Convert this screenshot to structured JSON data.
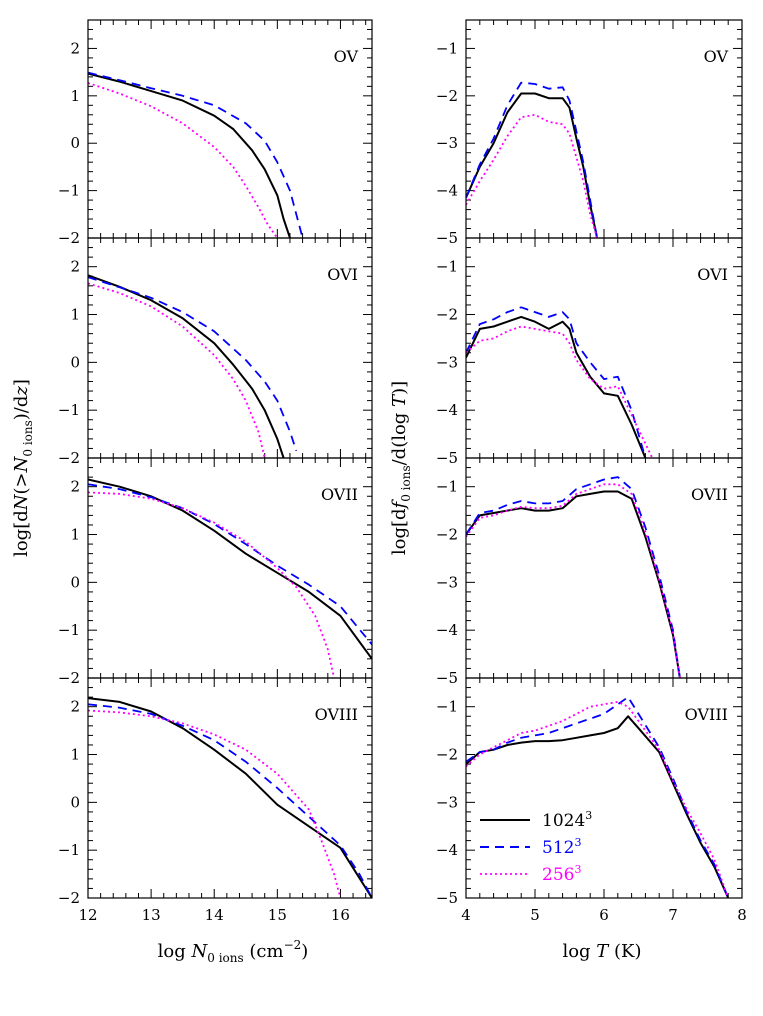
{
  "chart_data": [
    {
      "type": "line",
      "panel": "left",
      "row": 0,
      "title": "OV",
      "xlim": [
        12,
        16.5
      ],
      "ylim": [
        -2,
        2.6
      ],
      "series": [
        {
          "name": "1024³",
          "x": [
            12,
            12.5,
            13,
            13.5,
            14,
            14.3,
            14.6,
            14.8,
            15,
            15.1,
            15.2
          ],
          "y": [
            1.47,
            1.3,
            1.1,
            0.9,
            0.58,
            0.3,
            -0.15,
            -0.55,
            -1.1,
            -1.6,
            -2.0
          ]
        },
        {
          "name": "512³",
          "x": [
            12,
            12.5,
            13,
            13.5,
            14,
            14.5,
            14.8,
            15,
            15.2,
            15.3,
            15.4
          ],
          "y": [
            1.49,
            1.33,
            1.16,
            1.0,
            0.8,
            0.42,
            0.05,
            -0.4,
            -1.0,
            -1.5,
            -2.0
          ]
        },
        {
          "name": "256³",
          "x": [
            12,
            12.5,
            13,
            13.5,
            14,
            14.3,
            14.5,
            14.7,
            14.85,
            15
          ],
          "y": [
            1.27,
            1.05,
            0.78,
            0.42,
            -0.08,
            -0.5,
            -0.9,
            -1.35,
            -1.72,
            -2.0
          ]
        }
      ]
    },
    {
      "type": "line",
      "panel": "right",
      "row": 0,
      "title": "OV",
      "xlim": [
        4,
        8
      ],
      "ylim": [
        -5,
        -0.4
      ],
      "series": [
        {
          "name": "1024³",
          "x": [
            4,
            4.2,
            4.4,
            4.6,
            4.8,
            5,
            5.2,
            5.4,
            5.5,
            5.6,
            5.7,
            5.8,
            5.9
          ],
          "y": [
            -4.15,
            -3.5,
            -3,
            -2.35,
            -1.95,
            -1.95,
            -2.05,
            -2.05,
            -2.25,
            -2.9,
            -3.5,
            -4.3,
            -5
          ]
        },
        {
          "name": "512³",
          "x": [
            4,
            4.2,
            4.4,
            4.6,
            4.8,
            5,
            5.2,
            5.4,
            5.5,
            5.6,
            5.7,
            5.8,
            5.9
          ],
          "y": [
            -4.15,
            -3.45,
            -2.9,
            -2.2,
            -1.72,
            -1.75,
            -1.85,
            -1.82,
            -2.1,
            -2.75,
            -3.4,
            -4.2,
            -5
          ]
        },
        {
          "name": "256³",
          "x": [
            4,
            4.2,
            4.4,
            4.6,
            4.8,
            5,
            5.2,
            5.4,
            5.5,
            5.6,
            5.7,
            5.8,
            5.9
          ],
          "y": [
            -4.3,
            -3.8,
            -3.35,
            -2.85,
            -2.45,
            -2.4,
            -2.55,
            -2.6,
            -2.8,
            -3.3,
            -3.8,
            -4.5,
            -5
          ]
        }
      ]
    },
    {
      "type": "line",
      "panel": "left",
      "row": 1,
      "title": "OVI",
      "xlim": [
        12,
        16.5
      ],
      "ylim": [
        -2,
        2.6
      ],
      "series": [
        {
          "name": "1024³",
          "x": [
            12,
            12.5,
            13,
            13.5,
            14,
            14.3,
            14.6,
            14.8,
            15,
            15.1
          ],
          "y": [
            1.82,
            1.58,
            1.3,
            0.92,
            0.4,
            -0.05,
            -0.55,
            -1.0,
            -1.6,
            -2.0
          ]
        },
        {
          "name": "512³",
          "x": [
            12,
            12.5,
            13,
            13.5,
            14,
            14.5,
            14.8,
            15,
            15.2,
            15.3
          ],
          "y": [
            1.78,
            1.57,
            1.35,
            1.05,
            0.65,
            0.05,
            -0.4,
            -0.8,
            -1.45,
            -1.85
          ]
        },
        {
          "name": "256³",
          "x": [
            12,
            12.5,
            13,
            13.5,
            14,
            14.3,
            14.5,
            14.7,
            14.8
          ],
          "y": [
            1.65,
            1.45,
            1.17,
            0.75,
            0.15,
            -0.35,
            -0.8,
            -1.45,
            -2.0
          ]
        }
      ]
    },
    {
      "type": "line",
      "panel": "right",
      "row": 1,
      "title": "OVI",
      "xlim": [
        4,
        8
      ],
      "ylim": [
        -5,
        -0.4
      ],
      "series": [
        {
          "name": "1024³",
          "x": [
            4,
            4.2,
            4.4,
            4.6,
            4.8,
            5,
            5.2,
            5.4,
            5.5,
            5.6,
            5.8,
            6,
            6.2,
            6.4,
            6.6
          ],
          "y": [
            -2.9,
            -2.3,
            -2.25,
            -2.15,
            -2.05,
            -2.15,
            -2.3,
            -2.15,
            -2.3,
            -2.8,
            -3.3,
            -3.65,
            -3.7,
            -4.3,
            -5
          ]
        },
        {
          "name": "512³",
          "x": [
            4,
            4.2,
            4.4,
            4.6,
            4.8,
            5,
            5.2,
            5.4,
            5.5,
            5.6,
            5.8,
            6,
            6.2,
            6.4,
            6.6
          ],
          "y": [
            -2.8,
            -2.2,
            -2.1,
            -1.95,
            -1.85,
            -1.95,
            -2.05,
            -1.95,
            -2.1,
            -2.6,
            -3.0,
            -3.35,
            -3.3,
            -4.0,
            -5
          ]
        },
        {
          "name": "256³",
          "x": [
            4,
            4.2,
            4.4,
            4.6,
            4.8,
            5,
            5.2,
            5.4,
            5.5,
            5.6,
            5.8,
            6,
            6.2,
            6.4,
            6.7
          ],
          "y": [
            -2.8,
            -2.55,
            -2.5,
            -2.35,
            -2.25,
            -2.3,
            -2.35,
            -2.4,
            -2.6,
            -2.95,
            -3.35,
            -3.55,
            -3.5,
            -4.1,
            -5
          ]
        }
      ]
    },
    {
      "type": "line",
      "panel": "left",
      "row": 2,
      "title": "OVII",
      "xlim": [
        12,
        16.5
      ],
      "ylim": [
        -2,
        2.6
      ],
      "series": [
        {
          "name": "1024³",
          "x": [
            12,
            12.5,
            13,
            13.5,
            14,
            14.5,
            15,
            15.5,
            16,
            16.5
          ],
          "y": [
            2.15,
            2.0,
            1.8,
            1.5,
            1.08,
            0.6,
            0.2,
            -0.2,
            -0.7,
            -1.6
          ]
        },
        {
          "name": "512³",
          "x": [
            12,
            12.5,
            13,
            13.5,
            14,
            14.5,
            15,
            15.5,
            16,
            16.5
          ],
          "y": [
            2.05,
            1.95,
            1.78,
            1.55,
            1.22,
            0.8,
            0.35,
            -0.05,
            -0.5,
            -1.3
          ]
        },
        {
          "name": "256³",
          "x": [
            12,
            12.5,
            13,
            13.5,
            14,
            14.5,
            15,
            15.3,
            15.6,
            15.8,
            15.9
          ],
          "y": [
            1.88,
            1.85,
            1.75,
            1.55,
            1.25,
            0.85,
            0.3,
            -0.1,
            -0.7,
            -1.4,
            -2.0
          ]
        }
      ]
    },
    {
      "type": "line",
      "panel": "right",
      "row": 2,
      "title": "OVII",
      "xlim": [
        4,
        8
      ],
      "ylim": [
        -5,
        -0.4
      ],
      "series": [
        {
          "name": "1024³",
          "x": [
            4,
            4.2,
            4.4,
            4.6,
            4.8,
            5,
            5.2,
            5.4,
            5.6,
            5.8,
            6,
            6.2,
            6.4,
            6.6,
            6.8,
            7,
            7.1
          ],
          "y": [
            -2.0,
            -1.6,
            -1.55,
            -1.5,
            -1.45,
            -1.5,
            -1.5,
            -1.45,
            -1.2,
            -1.15,
            -1.1,
            -1.1,
            -1.25,
            -2.05,
            -3.0,
            -4.1,
            -5
          ]
        },
        {
          "name": "512³",
          "x": [
            4,
            4.2,
            4.4,
            4.6,
            4.8,
            5,
            5.2,
            5.4,
            5.6,
            5.8,
            6,
            6.2,
            6.4,
            6.6,
            6.8,
            7,
            7.1
          ],
          "y": [
            -2.0,
            -1.55,
            -1.5,
            -1.38,
            -1.3,
            -1.35,
            -1.35,
            -1.3,
            -1.05,
            -0.95,
            -0.85,
            -0.8,
            -1.05,
            -1.85,
            -2.85,
            -4.0,
            -5
          ]
        },
        {
          "name": "256³",
          "x": [
            4,
            4.2,
            4.4,
            4.6,
            4.8,
            5,
            5.2,
            5.4,
            5.6,
            5.8,
            6,
            6.2,
            6.4,
            6.6,
            6.8,
            7,
            7.1
          ],
          "y": [
            -2.05,
            -1.65,
            -1.6,
            -1.5,
            -1.42,
            -1.45,
            -1.45,
            -1.4,
            -1.15,
            -1.05,
            -0.95,
            -0.95,
            -1.15,
            -1.95,
            -2.95,
            -4.05,
            -5
          ]
        }
      ]
    },
    {
      "type": "line",
      "panel": "left",
      "row": 3,
      "title": "OVIII",
      "xlim": [
        12,
        16.5
      ],
      "ylim": [
        -2,
        2.6
      ],
      "series": [
        {
          "name": "1024³",
          "x": [
            12,
            12.5,
            13,
            13.5,
            14,
            14.5,
            15,
            15.5,
            16,
            16.5
          ],
          "y": [
            2.18,
            2.1,
            1.9,
            1.55,
            1.1,
            0.6,
            -0.05,
            -0.5,
            -0.95,
            -2.0
          ]
        },
        {
          "name": "512³",
          "x": [
            12,
            12.5,
            13,
            13.5,
            14,
            14.5,
            15,
            15.5,
            16,
            16.3,
            16.5
          ],
          "y": [
            2.05,
            1.98,
            1.85,
            1.6,
            1.3,
            0.85,
            0.3,
            -0.3,
            -0.9,
            -1.5,
            -2.0
          ]
        },
        {
          "name": "256³",
          "x": [
            12,
            12.5,
            13,
            13.5,
            14,
            14.5,
            15,
            15.5,
            15.7,
            15.9,
            16
          ],
          "y": [
            1.92,
            1.88,
            1.8,
            1.65,
            1.42,
            1.1,
            0.6,
            -0.15,
            -0.8,
            -1.5,
            -2.0
          ]
        }
      ]
    },
    {
      "type": "line",
      "panel": "right",
      "row": 3,
      "title": "OVIII",
      "xlim": [
        4,
        8
      ],
      "ylim": [
        -5,
        -0.4
      ],
      "series": [
        {
          "name": "1024³",
          "x": [
            4,
            4.2,
            4.4,
            4.6,
            4.8,
            5,
            5.2,
            5.4,
            5.6,
            5.8,
            6,
            6.2,
            6.35,
            6.5,
            6.8,
            7,
            7.2,
            7.4,
            7.6,
            7.8
          ],
          "y": [
            -2.2,
            -1.95,
            -1.9,
            -1.8,
            -1.75,
            -1.72,
            -1.72,
            -1.7,
            -1.65,
            -1.6,
            -1.55,
            -1.45,
            -1.2,
            -1.45,
            -1.95,
            -2.6,
            -3.25,
            -3.85,
            -4.35,
            -5
          ]
        },
        {
          "name": "512³",
          "x": [
            4,
            4.2,
            4.4,
            4.6,
            4.8,
            5,
            5.2,
            5.4,
            5.6,
            5.8,
            6,
            6.2,
            6.35,
            6.5,
            6.8,
            7,
            7.2,
            7.4,
            7.6,
            7.8
          ],
          "y": [
            -2.15,
            -1.95,
            -1.9,
            -1.75,
            -1.65,
            -1.6,
            -1.55,
            -1.45,
            -1.35,
            -1.25,
            -1.15,
            -0.95,
            -0.8,
            -1.15,
            -1.85,
            -2.5,
            -3.2,
            -3.8,
            -4.3,
            -5
          ]
        },
        {
          "name": "256³",
          "x": [
            4,
            4.2,
            4.4,
            4.6,
            4.8,
            5,
            5.2,
            5.4,
            5.6,
            5.8,
            6,
            6.2,
            6.35,
            6.5,
            6.8,
            7,
            7.2,
            7.4,
            7.6,
            7.8
          ],
          "y": [
            -2.25,
            -2.0,
            -1.85,
            -1.7,
            -1.55,
            -1.5,
            -1.4,
            -1.3,
            -1.15,
            -1.0,
            -0.95,
            -0.9,
            -1.0,
            -1.3,
            -1.9,
            -2.55,
            -3.15,
            -3.65,
            -4.2,
            -5
          ]
        }
      ]
    }
  ],
  "series_styles": [
    {
      "name": "1024³",
      "color": "#000000",
      "dash": "solid"
    },
    {
      "name": "512³",
      "color": "#0000ff",
      "dash": "dashed"
    },
    {
      "name": "256³",
      "color": "#ff00ff",
      "dash": "dotted"
    }
  ],
  "legend": {
    "entries": [
      {
        "base": "1024",
        "sup": "3"
      },
      {
        "base": "512",
        "sup": "3"
      },
      {
        "base": "256",
        "sup": "3"
      }
    ]
  },
  "axes": {
    "left": {
      "xticks": [
        "12",
        "13",
        "14",
        "15",
        "16"
      ],
      "yticks": [
        "2",
        "1",
        "0",
        "−1",
        "−2"
      ],
      "xlabel": {
        "pre": "log ",
        "var": "N",
        "sub": "0 ions",
        "post": " (cm",
        "sup": "−2",
        "end": ")"
      },
      "ylabel": {
        "pre": "log[d",
        "var": "N",
        "mid": "(>",
        "var2": "N",
        "sub": "0 ions",
        "post": ")/d",
        "var3": "z",
        "end": "]"
      }
    },
    "right": {
      "xticks": [
        "4",
        "5",
        "6",
        "7",
        "8"
      ],
      "yticks": [
        "−1",
        "−2",
        "−3",
        "−4",
        "−5"
      ],
      "xlabel": {
        "pre": "log ",
        "var": "T",
        "post": " (K)"
      },
      "ylabel": {
        "pre": "log[d",
        "var": "f",
        "sub": "0 ions",
        "post": "/d(log ",
        "var2": "T",
        "end": ")]"
      }
    }
  }
}
